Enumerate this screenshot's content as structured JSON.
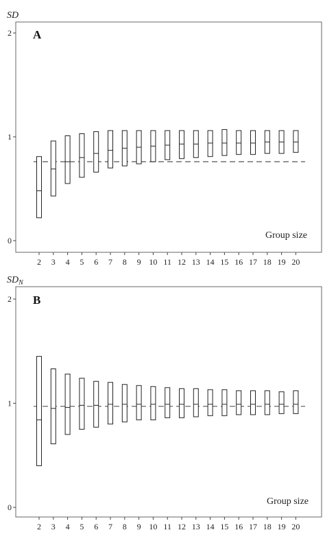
{
  "chart_data": [
    {
      "type": "boxplot",
      "panel": "A",
      "ylabel": "SD",
      "xlabel": "Group size",
      "ylim": [
        0,
        2
      ],
      "yticks": [
        "0",
        "1",
        "2"
      ],
      "categories": [
        "2",
        "3",
        "4",
        "5",
        "6",
        "7",
        "8",
        "9",
        "10",
        "11",
        "12",
        "13",
        "14",
        "15",
        "16",
        "17",
        "18",
        "19",
        "20"
      ],
      "reference_line": 0.76,
      "boxes": [
        {
          "low": 0.22,
          "median": 0.48,
          "high": 0.81
        },
        {
          "low": 0.43,
          "median": 0.69,
          "high": 0.96
        },
        {
          "low": 0.55,
          "median": 0.76,
          "high": 1.01
        },
        {
          "low": 0.61,
          "median": 0.8,
          "high": 1.03
        },
        {
          "low": 0.66,
          "median": 0.84,
          "high": 1.05
        },
        {
          "low": 0.7,
          "median": 0.87,
          "high": 1.06
        },
        {
          "low": 0.72,
          "median": 0.89,
          "high": 1.06
        },
        {
          "low": 0.74,
          "median": 0.9,
          "high": 1.06
        },
        {
          "low": 0.76,
          "median": 0.91,
          "high": 1.06
        },
        {
          "low": 0.78,
          "median": 0.92,
          "high": 1.06
        },
        {
          "low": 0.79,
          "median": 0.93,
          "high": 1.06
        },
        {
          "low": 0.8,
          "median": 0.93,
          "high": 1.06
        },
        {
          "low": 0.81,
          "median": 0.94,
          "high": 1.06
        },
        {
          "low": 0.82,
          "median": 0.94,
          "high": 1.07
        },
        {
          "low": 0.83,
          "median": 0.94,
          "high": 1.06
        },
        {
          "low": 0.83,
          "median": 0.94,
          "high": 1.06
        },
        {
          "low": 0.84,
          "median": 0.95,
          "high": 1.06
        },
        {
          "low": 0.84,
          "median": 0.95,
          "high": 1.06
        },
        {
          "low": 0.85,
          "median": 0.95,
          "high": 1.06
        }
      ]
    },
    {
      "type": "boxplot",
      "panel": "B",
      "ylabel": "SD",
      "ylabel_sub": "N",
      "xlabel": "Group size",
      "ylim": [
        0,
        2
      ],
      "yticks": [
        "0",
        "1",
        "2"
      ],
      "categories": [
        "2",
        "3",
        "4",
        "5",
        "6",
        "7",
        "8",
        "9",
        "10",
        "11",
        "12",
        "13",
        "14",
        "15",
        "16",
        "17",
        "18",
        "19",
        "20"
      ],
      "reference_line": 0.97,
      "boxes": [
        {
          "low": 0.4,
          "median": 0.84,
          "high": 1.45
        },
        {
          "low": 0.61,
          "median": 0.95,
          "high": 1.33
        },
        {
          "low": 0.7,
          "median": 0.96,
          "high": 1.28
        },
        {
          "low": 0.75,
          "median": 0.98,
          "high": 1.24
        },
        {
          "low": 0.77,
          "median": 0.98,
          "high": 1.21
        },
        {
          "low": 0.8,
          "median": 0.99,
          "high": 1.2
        },
        {
          "low": 0.82,
          "median": 0.99,
          "high": 1.18
        },
        {
          "low": 0.84,
          "median": 0.99,
          "high": 1.17
        },
        {
          "low": 0.84,
          "median": 0.99,
          "high": 1.16
        },
        {
          "low": 0.86,
          "median": 0.99,
          "high": 1.15
        },
        {
          "low": 0.86,
          "median": 0.99,
          "high": 1.14
        },
        {
          "low": 0.87,
          "median": 0.99,
          "high": 1.14
        },
        {
          "low": 0.88,
          "median": 0.99,
          "high": 1.13
        },
        {
          "low": 0.88,
          "median": 0.99,
          "high": 1.13
        },
        {
          "low": 0.89,
          "median": 0.99,
          "high": 1.12
        },
        {
          "low": 0.89,
          "median": 0.99,
          "high": 1.12
        },
        {
          "low": 0.89,
          "median": 0.99,
          "high": 1.12
        },
        {
          "low": 0.9,
          "median": 0.99,
          "high": 1.11
        },
        {
          "low": 0.9,
          "median": 0.99,
          "high": 1.12
        }
      ]
    }
  ]
}
